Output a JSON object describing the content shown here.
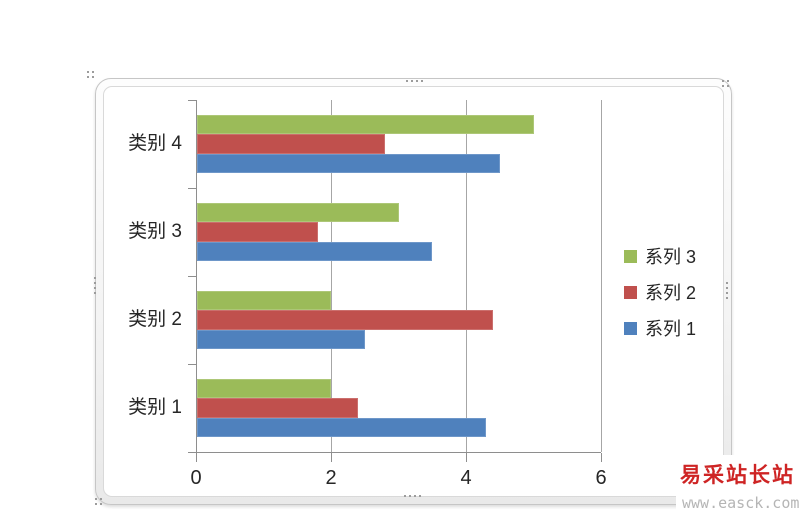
{
  "chart_data": {
    "type": "bar",
    "orientation": "horizontal",
    "title": "",
    "xlabel": "",
    "ylabel": "",
    "categories": [
      "类别 1",
      "类别 2",
      "类别 3",
      "类别 4"
    ],
    "series": [
      {
        "name": "系列 1",
        "color": "#4F81BD",
        "values": [
          4.3,
          2.5,
          3.5,
          4.5
        ]
      },
      {
        "name": "系列 2",
        "color": "#C0504D",
        "values": [
          2.4,
          4.4,
          1.8,
          2.8
        ]
      },
      {
        "name": "系列 3",
        "color": "#9BBB59",
        "values": [
          2,
          2,
          3,
          5
        ]
      }
    ],
    "xlim": [
      0,
      6
    ],
    "xticks": [
      0,
      2,
      4,
      6
    ],
    "grid": true,
    "legend_position": "right",
    "legend_order_top_to_bottom": [
      "系列 3",
      "系列 2",
      "系列 1"
    ],
    "category_order_top_to_bottom": [
      "类别 4",
      "类别 3",
      "类别 2",
      "类别 1"
    ],
    "colors": {
      "axis": "#8e8e8e",
      "gridline": "#a6a6a6",
      "text": "#262626",
      "plot_background": "#ffffff"
    }
  },
  "watermark": {
    "title": "易采站长站",
    "url": "www.easck.com",
    "title_color": "#ce2424",
    "url_color": "#b5b5b5"
  }
}
